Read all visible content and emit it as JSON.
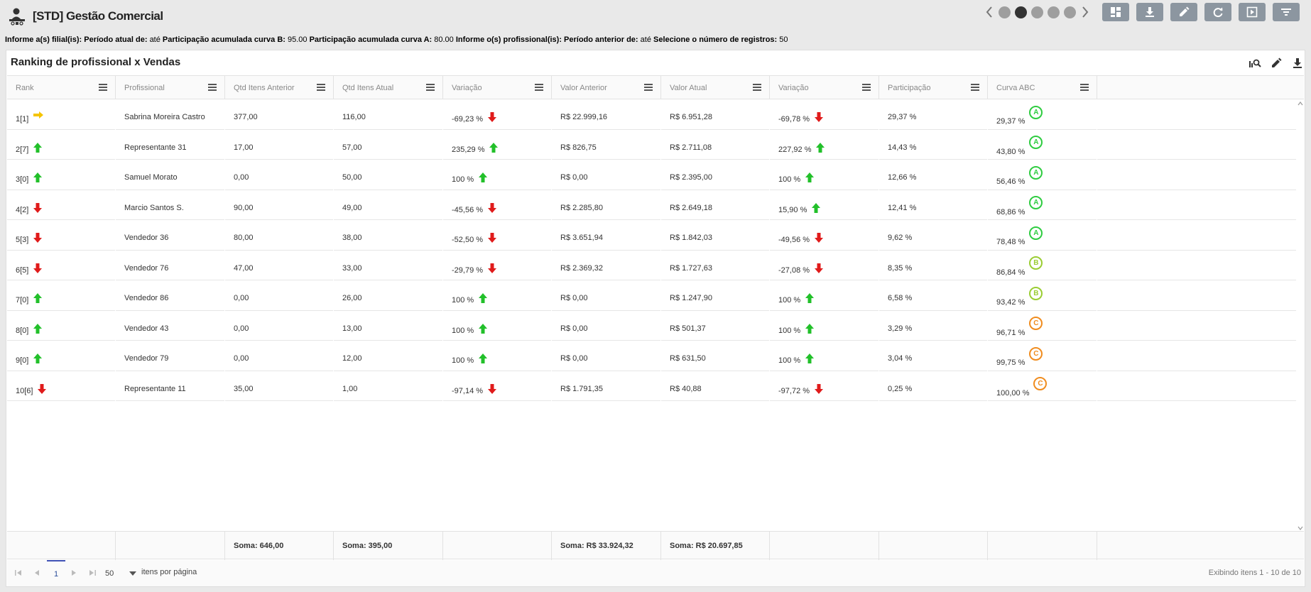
{
  "app": {
    "title": "[STD] Gestão Comercial",
    "logo_icon": "user-desk-icon"
  },
  "carousel": {
    "pages": 5,
    "active_index": 1
  },
  "toolbar": {
    "buttons": [
      "dashboard-icon",
      "download-icon",
      "edit-icon",
      "refresh-icon",
      "present-icon",
      "filter-icon"
    ],
    "bg_color": "#8c96a0"
  },
  "filters": {
    "l1": "Informe a(s) filial(is):",
    "l2": "Período atual de:",
    "v2": "até",
    "l3": "Participação acumulada curva B:",
    "v3": "95.00",
    "l4": "Participação acumulada curva A:",
    "v4": "80.00",
    "l5": "Informe o(s) profissional(is):",
    "l6": "Período anterior de:",
    "v6": "até",
    "l7": "Selecione o número de registros:",
    "v7": "50"
  },
  "panel": {
    "title": "Ranking de profissional x Vendas",
    "tools": [
      "zoom-chart-icon",
      "edit-icon",
      "download-icon"
    ]
  },
  "columns": [
    "Rank",
    "Profissional",
    "Qtd Itens Anterior",
    "Qtd Itens Atual",
    "Variação",
    "Valor Anterior",
    "Valor Atual",
    "Variação",
    "Participação",
    "Curva ABC"
  ],
  "rows": [
    {
      "rank": "1[1]",
      "rank_trend": "same",
      "prof": "Sabrina Moreira Castro",
      "qa": "377,00",
      "qc": "116,00",
      "var1": "-69,23 %",
      "var1_trend": "down",
      "va": "R$ 22.999,16",
      "vc": "R$ 6.951,28",
      "var2": "-69,78 %",
      "var2_trend": "down",
      "part": "29,37 %",
      "acc": "29,37 %",
      "curve": "A"
    },
    {
      "rank": "2[7]",
      "rank_trend": "up",
      "prof": "Representante 31",
      "qa": "17,00",
      "qc": "57,00",
      "var1": "235,29 %",
      "var1_trend": "up",
      "va": "R$ 826,75",
      "vc": "R$ 2.711,08",
      "var2": "227,92 %",
      "var2_trend": "up",
      "part": "14,43 %",
      "acc": "43,80 %",
      "curve": "A"
    },
    {
      "rank": "3[0]",
      "rank_trend": "up",
      "prof": "Samuel Morato",
      "qa": "0,00",
      "qc": "50,00",
      "var1": "100 %",
      "var1_trend": "up",
      "va": "R$ 0,00",
      "vc": "R$ 2.395,00",
      "var2": "100 %",
      "var2_trend": "up",
      "part": "12,66 %",
      "acc": "56,46 %",
      "curve": "A"
    },
    {
      "rank": "4[2]",
      "rank_trend": "down",
      "prof": "Marcio Santos S.",
      "qa": "90,00",
      "qc": "49,00",
      "var1": "-45,56 %",
      "var1_trend": "down",
      "va": "R$ 2.285,80",
      "vc": "R$ 2.649,18",
      "var2": "15,90 %",
      "var2_trend": "up",
      "part": "12,41 %",
      "acc": "68,86 %",
      "curve": "A"
    },
    {
      "rank": "5[3]",
      "rank_trend": "down",
      "prof": "Vendedor 36",
      "qa": "80,00",
      "qc": "38,00",
      "var1": "-52,50 %",
      "var1_trend": "down",
      "va": "R$ 3.651,94",
      "vc": "R$ 1.842,03",
      "var2": "-49,56 %",
      "var2_trend": "down",
      "part": "9,62 %",
      "acc": "78,48 %",
      "curve": "A"
    },
    {
      "rank": "6[5]",
      "rank_trend": "down",
      "prof": "Vendedor 76",
      "qa": "47,00",
      "qc": "33,00",
      "var1": "-29,79 %",
      "var1_trend": "down",
      "va": "R$ 2.369,32",
      "vc": "R$ 1.727,63",
      "var2": "-27,08 %",
      "var2_trend": "down",
      "part": "8,35 %",
      "acc": "86,84 %",
      "curve": "B"
    },
    {
      "rank": "7[0]",
      "rank_trend": "up",
      "prof": "Vendedor 86",
      "qa": "0,00",
      "qc": "26,00",
      "var1": "100 %",
      "var1_trend": "up",
      "va": "R$ 0,00",
      "vc": "R$ 1.247,90",
      "var2": "100 %",
      "var2_trend": "up",
      "part": "6,58 %",
      "acc": "93,42 %",
      "curve": "B"
    },
    {
      "rank": "8[0]",
      "rank_trend": "up",
      "prof": "Vendedor 43",
      "qa": "0,00",
      "qc": "13,00",
      "var1": "100 %",
      "var1_trend": "up",
      "va": "R$ 0,00",
      "vc": "R$ 501,37",
      "var2": "100 %",
      "var2_trend": "up",
      "part": "3,29 %",
      "acc": "96,71 %",
      "curve": "C"
    },
    {
      "rank": "9[0]",
      "rank_trend": "up",
      "prof": "Vendedor 79",
      "qa": "0,00",
      "qc": "12,00",
      "var1": "100 %",
      "var1_trend": "up",
      "va": "R$ 0,00",
      "vc": "R$ 631,50",
      "var2": "100 %",
      "var2_trend": "up",
      "part": "3,04 %",
      "acc": "99,75 %",
      "curve": "C"
    },
    {
      "rank": "10[6]",
      "rank_trend": "down",
      "prof": "Representante 11",
      "qa": "35,00",
      "qc": "1,00",
      "var1": "-97,14 %",
      "var1_trend": "down",
      "va": "R$ 1.791,35",
      "vc": "R$ 40,88",
      "var2": "-97,72 %",
      "var2_trend": "down",
      "part": "0,25 %",
      "acc": "100,00 %",
      "curve": "C"
    }
  ],
  "totals": {
    "qa": "Soma: 646,00",
    "qc": "Soma: 395,00",
    "va": "Soma: R$ 33.924,32",
    "vc": "Soma: R$ 20.697,85"
  },
  "pager": {
    "current_page": "1",
    "page_size": "50",
    "page_size_label": "itens por página",
    "info": "Exibindo itens 1 - 10 de 10"
  },
  "colors": {
    "up": "#22c02a",
    "down": "#e01b1b",
    "same": "#f5c400",
    "curve_A": "#2ecc40",
    "curve_B": "#9acd32",
    "curve_C": "#f08c1e"
  }
}
